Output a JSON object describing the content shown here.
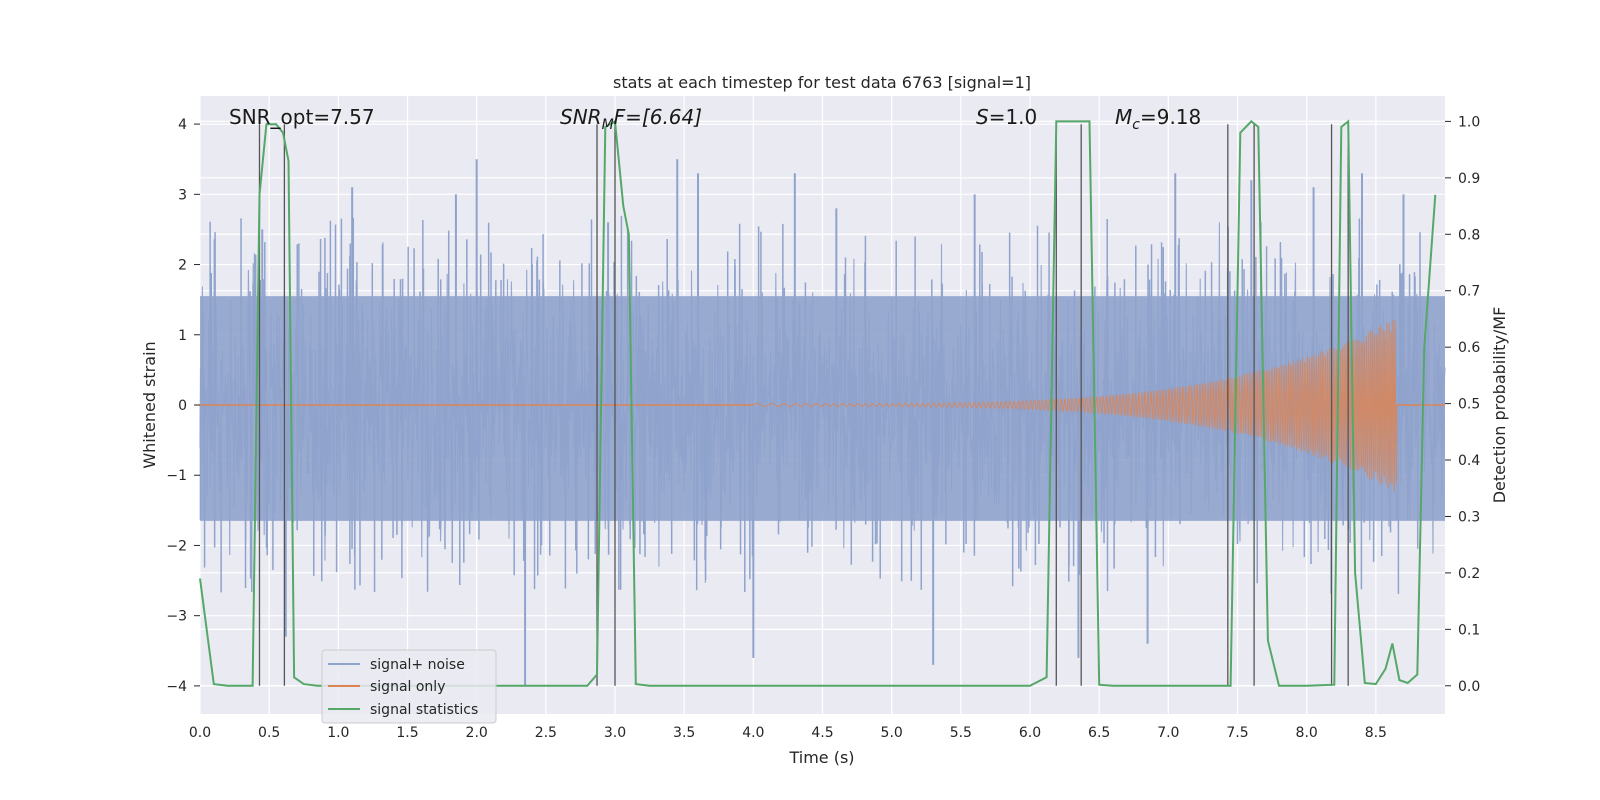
{
  "chart_data": {
    "type": "line",
    "title": "stats at each timestep for test data 6763 [signal=1]",
    "xlabel": "Time (s)",
    "ylabel": "Whitened strain",
    "y2label": "Detection probability/MF",
    "xlim": [
      0.0,
      9.0
    ],
    "ylim": [
      -4.4,
      4.4
    ],
    "y2lim": [
      -0.05,
      1.045
    ],
    "xticks": [
      0.0,
      0.5,
      1.0,
      1.5,
      2.0,
      2.5,
      3.0,
      3.5,
      4.0,
      4.5,
      5.0,
      5.5,
      6.0,
      6.5,
      7.0,
      7.5,
      8.0,
      8.5
    ],
    "xtick_labels": [
      "0.0",
      "0.5",
      "1.0",
      "1.5",
      "2.0",
      "2.5",
      "3.0",
      "3.5",
      "4.0",
      "4.5",
      "5.0",
      "5.5",
      "6.0",
      "6.5",
      "7.0",
      "7.5",
      "8.0",
      "8.5"
    ],
    "yticks": [
      4,
      3,
      2,
      1,
      0,
      -1,
      -2,
      -3,
      -4
    ],
    "ytick_labels": [
      "4",
      "3",
      "2",
      "1",
      "0",
      "−1",
      "−2",
      "−3",
      "−4"
    ],
    "y2ticks": [
      1.0,
      0.9,
      0.8,
      0.7,
      0.6,
      0.5,
      0.4,
      0.3,
      0.2,
      0.1,
      0.0
    ],
    "y2tick_labels": [
      "1.0",
      "0.9",
      "0.8",
      "0.7",
      "0.6",
      "0.5",
      "0.4",
      "0.3",
      "0.2",
      "0.1",
      "0.0"
    ],
    "grid": true,
    "legend_position": "lower-left",
    "annotations": {
      "snr_opt": "SNR_opt=7.57",
      "snr_mf_sym": "SNR",
      "snr_mf_sub": "M",
      "snr_mf_rest": "F=[6.64]",
      "s_sym": "S",
      "s_rest": "=1.0",
      "mc_sym": "M",
      "mc_sub": "c",
      "mc_rest": "=9.18"
    },
    "series": [
      {
        "name": "signal+ noise",
        "color": "#8fa3cc",
        "kind": "noise",
        "core_sigma": 0.8,
        "spike_envelope": [
          2.0,
          -2.1
        ],
        "spike_peaks_x": [
          0.45,
          0.62,
          1.1,
          1.85,
          2.0,
          2.35,
          2.95,
          3.45,
          3.6,
          4.0,
          4.3,
          4.6,
          5.3,
          5.6,
          6.35,
          6.85,
          7.05,
          7.6,
          8.05,
          8.4,
          8.7
        ],
        "spike_peaks_y": [
          2.5,
          -3.3,
          3.1,
          3.0,
          3.5,
          -4.0,
          2.6,
          3.5,
          3.3,
          -3.6,
          3.3,
          2.8,
          -3.7,
          3.0,
          -3.6,
          -3.4,
          3.3,
          3.2,
          3.1,
          3.3,
          3.0
        ]
      },
      {
        "name": "signal only",
        "color": "#dd8452",
        "kind": "chirp",
        "start_x": 4.0,
        "end_x": 8.65,
        "start_amp": 0.02,
        "end_amp": 1.25
      },
      {
        "name": "signal statistics",
        "color": "#55a868",
        "kind": "line",
        "axis": "right",
        "x": [
          0.0,
          0.1,
          0.2,
          0.3,
          0.38,
          0.43,
          0.48,
          0.55,
          0.6,
          0.64,
          0.68,
          0.75,
          0.85,
          1.0,
          2.0,
          2.8,
          2.87,
          2.93,
          3.0,
          3.06,
          3.1,
          3.15,
          3.25,
          4.0,
          5.0,
          6.0,
          6.12,
          6.19,
          6.25,
          6.35,
          6.43,
          6.5,
          6.6,
          7.0,
          7.45,
          7.52,
          7.6,
          7.65,
          7.72,
          7.8,
          8.0,
          8.2,
          8.25,
          8.3,
          8.35,
          8.42,
          8.5,
          8.57,
          8.62,
          8.67,
          8.73,
          8.8,
          8.85,
          8.93
        ],
        "values": [
          0.19,
          0.003,
          0.0,
          0.0,
          0.0,
          0.87,
          0.995,
          0.995,
          0.98,
          0.93,
          0.015,
          0.003,
          0.0,
          0.0,
          0.0,
          0.0,
          0.02,
          0.99,
          1.0,
          0.85,
          0.8,
          0.003,
          0.0,
          0.0,
          0.0,
          0.0,
          0.015,
          1.0,
          1.0,
          1.0,
          1.0,
          0.002,
          0.0,
          0.0,
          0.0,
          0.98,
          1.0,
          0.99,
          0.08,
          0.0,
          0.0,
          0.002,
          0.99,
          1.0,
          0.2,
          0.005,
          0.003,
          0.03,
          0.075,
          0.01,
          0.005,
          0.02,
          0.6,
          0.87
        ]
      }
    ],
    "vertical_markers_x": [
      0.43,
      0.61,
      2.87,
      3.0,
      6.19,
      6.37,
      7.43,
      7.62,
      8.18,
      8.3
    ],
    "vertical_marker_color": "#555555"
  }
}
